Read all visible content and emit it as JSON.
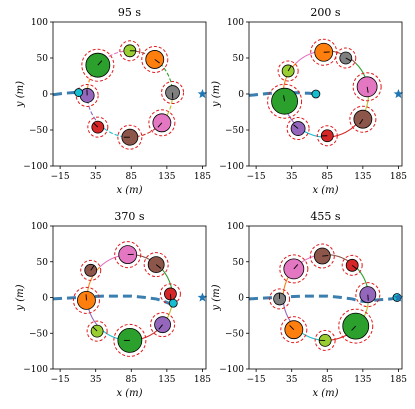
{
  "chart_data": [
    {
      "type": "scatter",
      "title": "95 s",
      "xlabel": "x (m)",
      "ylabel": "y (m)",
      "xlim": [
        -25,
        190
      ],
      "ylim": [
        -100,
        100
      ],
      "xticks": [
        -15,
        35,
        85,
        135,
        185
      ],
      "yticks": [
        -100,
        -50,
        0,
        50,
        100
      ],
      "grid": false,
      "target": {
        "x": 185,
        "y": 0,
        "marker": "star",
        "color": "#1f77b4"
      },
      "path": {
        "x": [
          -25,
          -10,
          5,
          15,
          25
        ],
        "y": [
          -1,
          1,
          2,
          1,
          0
        ],
        "color": "#3b7fb0"
      },
      "circle": {
        "cx": 83,
        "cy": 0,
        "r": 60
      },
      "vehicles": [
        {
          "x": 83,
          "y": 60,
          "r": 6,
          "color": "#9acd32"
        },
        {
          "x": 118,
          "y": 48,
          "r": 9,
          "color": "#ff7f0e"
        },
        {
          "x": 143,
          "y": 2,
          "r": 7,
          "color": "#7f7f7f"
        },
        {
          "x": 128,
          "y": -40,
          "r": 9,
          "color": "#e377c2"
        },
        {
          "x": 83,
          "y": -60,
          "r": 8,
          "color": "#8c564b"
        },
        {
          "x": 38,
          "y": -46,
          "r": 6,
          "color": "#d62728"
        },
        {
          "x": 23,
          "y": -2,
          "r": 7,
          "color": "#9467bd"
        },
        {
          "x": 38,
          "y": 40,
          "r": 12,
          "color": "#2ca02c"
        }
      ],
      "extra_points": [
        {
          "x": 11,
          "y": 2,
          "r": 4,
          "color": "#17becf"
        }
      ]
    },
    {
      "type": "scatter",
      "title": "200 s",
      "xlabel": "x (m)",
      "ylabel": "y (m)",
      "xlim": [
        -25,
        190
      ],
      "ylim": [
        -100,
        100
      ],
      "xticks": [
        -15,
        35,
        85,
        135,
        185
      ],
      "yticks": [
        -100,
        -50,
        0,
        50,
        100
      ],
      "grid": false,
      "target": {
        "x": 185,
        "y": 0,
        "marker": "star",
        "color": "#1f77b4"
      },
      "path": {
        "x": [
          -25,
          5,
          35,
          60,
          70
        ],
        "y": [
          -2,
          1,
          2,
          1,
          0
        ],
        "color": "#3b7fb0"
      },
      "circle": {
        "cx": 83,
        "cy": 0,
        "r": 60
      },
      "vehicles": [
        {
          "x": 80,
          "y": 58,
          "r": 9,
          "color": "#ff7f0e"
        },
        {
          "x": 111,
          "y": 50,
          "r": 6,
          "color": "#7f7f7f"
        },
        {
          "x": 141,
          "y": 10,
          "r": 10,
          "color": "#e377c2"
        },
        {
          "x": 135,
          "y": -35,
          "r": 9,
          "color": "#8c564b"
        },
        {
          "x": 85,
          "y": -58,
          "r": 6,
          "color": "#d62728"
        },
        {
          "x": 44,
          "y": -48,
          "r": 7,
          "color": "#9467bd"
        },
        {
          "x": 25,
          "y": -10,
          "r": 13,
          "color": "#2ca02c"
        },
        {
          "x": 30,
          "y": 32,
          "r": 6,
          "color": "#9acd32"
        }
      ],
      "extra_points": [
        {
          "x": 69,
          "y": 0,
          "r": 4,
          "color": "#17becf"
        }
      ]
    },
    {
      "type": "scatter",
      "title": "370 s",
      "xlabel": "x (m)",
      "ylabel": "y (m)",
      "xlim": [
        -25,
        190
      ],
      "ylim": [
        -100,
        100
      ],
      "xticks": [
        -15,
        35,
        85,
        135,
        185
      ],
      "yticks": [
        -100,
        -50,
        0,
        50,
        100
      ],
      "grid": false,
      "target": {
        "x": 185,
        "y": 0,
        "marker": "star",
        "color": "#1f77b4"
      },
      "path": {
        "x": [
          -25,
          10,
          45,
          85,
          105,
          120,
          130,
          138,
          145
        ],
        "y": [
          -2,
          0,
          2,
          2,
          0,
          -2,
          -5,
          -8,
          -5
        ],
        "color": "#3b7fb0"
      },
      "circle": {
        "cx": 83,
        "cy": 0,
        "r": 60
      },
      "vehicles": [
        {
          "x": 28,
          "y": 38,
          "r": 6,
          "color": "#8c564b"
        },
        {
          "x": 80,
          "y": 60,
          "r": 9,
          "color": "#e377c2"
        },
        {
          "x": 120,
          "y": 46,
          "r": 8,
          "color": "#8c564b"
        },
        {
          "x": 140,
          "y": 5,
          "r": 6,
          "color": "#d62728"
        },
        {
          "x": 129,
          "y": -38,
          "r": 8,
          "color": "#9467bd"
        },
        {
          "x": 83,
          "y": -60,
          "r": 12,
          "color": "#2ca02c"
        },
        {
          "x": 37,
          "y": -47,
          "r": 6,
          "color": "#9acd32"
        },
        {
          "x": 22,
          "y": -4,
          "r": 9,
          "color": "#ff7f0e"
        }
      ],
      "extra_points": [
        {
          "x": 144,
          "y": -8,
          "r": 4,
          "color": "#17becf"
        }
      ]
    },
    {
      "type": "scatter",
      "title": "455 s",
      "xlabel": "x (m)",
      "ylabel": "y (m)",
      "xlim": [
        -25,
        190
      ],
      "ylim": [
        -100,
        100
      ],
      "xticks": [
        -15,
        35,
        85,
        135,
        185
      ],
      "yticks": [
        -100,
        -50,
        0,
        50,
        100
      ],
      "grid": false,
      "target": {
        "x": 185,
        "y": 0,
        "marker": "star",
        "color": "#1f77b4"
      },
      "path": {
        "x": [
          -25,
          10,
          50,
          85,
          105,
          120,
          130,
          142,
          150,
          160,
          175,
          185
        ],
        "y": [
          -2,
          0,
          2,
          2,
          0,
          -2,
          -5,
          -6,
          -4,
          -3,
          -2,
          0
        ],
        "color": "#3b7fb0"
      },
      "circle": {
        "cx": 83,
        "cy": 0,
        "r": 60
      },
      "vehicles": [
        {
          "x": 38,
          "y": 40,
          "r": 10,
          "color": "#e377c2"
        },
        {
          "x": 78,
          "y": 58,
          "r": 8,
          "color": "#8c564b"
        },
        {
          "x": 120,
          "y": 45,
          "r": 6,
          "color": "#d62728"
        },
        {
          "x": 142,
          "y": 4,
          "r": 8,
          "color": "#9467bd"
        },
        {
          "x": 125,
          "y": -40,
          "r": 13,
          "color": "#2ca02c"
        },
        {
          "x": 82,
          "y": -60,
          "r": 6,
          "color": "#9acd32"
        },
        {
          "x": 38,
          "y": -45,
          "r": 9,
          "color": "#ff7f0e"
        },
        {
          "x": 18,
          "y": -2,
          "r": 6,
          "color": "#7f7f7f"
        }
      ],
      "extra_points": [
        {
          "x": 183,
          "y": 0,
          "r": 4,
          "color": "#17becf"
        }
      ]
    }
  ]
}
